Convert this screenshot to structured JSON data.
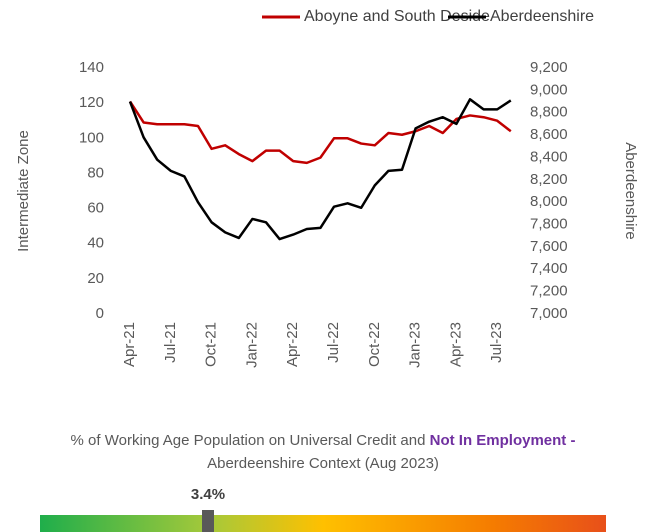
{
  "chart_data": {
    "type": "line",
    "categories": [
      "Apr-21",
      null,
      null,
      "Jul-21",
      null,
      null,
      "Oct-21",
      null,
      null,
      "Jan-22",
      null,
      null,
      "Apr-22",
      null,
      null,
      "Jul-22",
      null,
      null,
      "Oct-22",
      null,
      null,
      "Jan-23",
      null,
      null,
      "Apr-23",
      null,
      null,
      "Jul-23",
      null
    ],
    "series": [
      {
        "name": "Aboyne and South Deside",
        "color": "#c00000",
        "values": [
          121,
          109,
          108,
          108,
          108,
          107,
          94,
          96,
          91,
          87,
          93,
          93,
          87,
          86,
          89,
          100,
          100,
          97,
          96,
          103,
          102,
          104,
          107,
          103,
          111,
          113,
          112,
          110,
          104
        ]
      },
      {
        "name": "Aberdeenshire",
        "color": "#000000",
        "axis": "y2",
        "values": [
          8900,
          8580,
          8380,
          8280,
          8230,
          8000,
          7820,
          7730,
          7680,
          7850,
          7820,
          7670,
          7710,
          7760,
          7770,
          7960,
          7990,
          7950,
          8150,
          8280,
          8290,
          8660,
          8720,
          8760,
          8700,
          8920,
          8830,
          8830,
          8910
        ]
      }
    ],
    "ylabel": "Intermediate Zone",
    "y2label": "Aberdeenshire",
    "ylim": [
      0,
      140
    ],
    "yticks": [
      0,
      20,
      40,
      60,
      80,
      100,
      120,
      140
    ],
    "y2lim": [
      7000,
      9200
    ],
    "y2ticks": [
      {
        "value": 7000,
        "label": "7,000"
      },
      {
        "value": 7200,
        "label": "7,200"
      },
      {
        "value": 7400,
        "label": "7,400"
      },
      {
        "value": 7600,
        "label": "7,600"
      },
      {
        "value": 7800,
        "label": "7,800"
      },
      {
        "value": 8000,
        "label": "8,000"
      },
      {
        "value": 8200,
        "label": "8,200"
      },
      {
        "value": 8400,
        "label": "8,400"
      },
      {
        "value": 8600,
        "label": "8,600"
      },
      {
        "value": 8800,
        "label": "8,800"
      },
      {
        "value": 9000,
        "label": "9,000"
      },
      {
        "value": 9200,
        "label": "9,200"
      }
    ],
    "grid": false,
    "legend": "top"
  },
  "gauge": {
    "title_start": "% of Working Age Population on Universal Credit and ",
    "title_bold": "Not In Employment -",
    "title_end": " Aberdeenshire Context (Aug 2023)",
    "value": 3.4,
    "value_label": "3.4%"
  }
}
